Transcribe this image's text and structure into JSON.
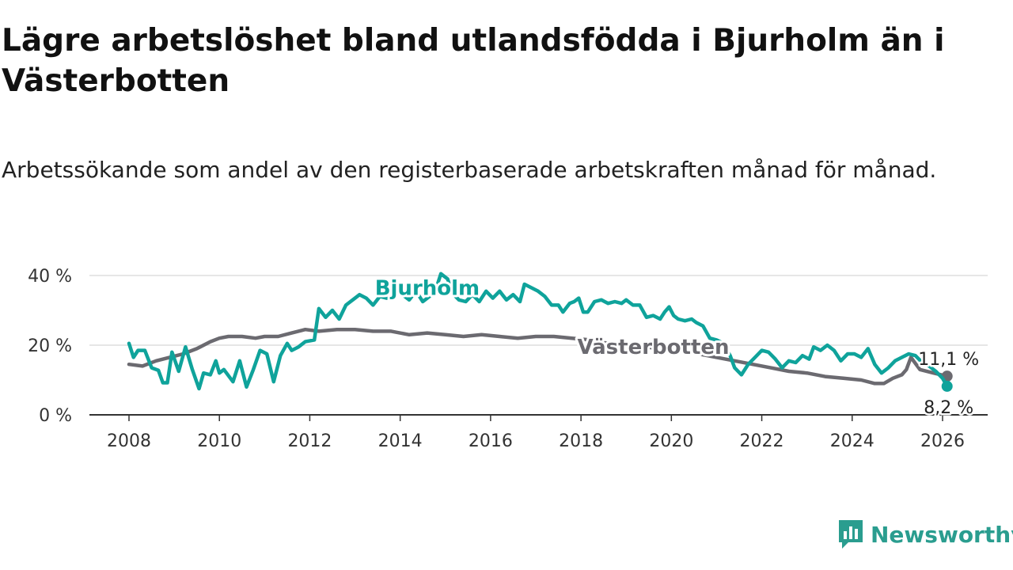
{
  "title": "Lägre arbetslöshet bland utlandsfödda i Bjurholm än i Västerbotten",
  "subtitle": "Arbetssökande som andel av den registerbaserade arbetskraften månad för månad.",
  "logo_text": "Newsworthy",
  "colors": {
    "bjurholm": "#0fa39b",
    "vasterbotten": "#6b6a70",
    "grid": "#dddddd",
    "axis": "#333333",
    "text": "#333333",
    "brand": "#2a9d8f"
  },
  "chart_data": {
    "type": "line",
    "title": "Lägre arbetslöshet bland utlandsfödda i Bjurholm än i Västerbotten",
    "xlabel": "",
    "ylabel": "",
    "xlim": [
      2008,
      2026.1
    ],
    "ylim": [
      0,
      40
    ],
    "x_ticks": [
      {
        "value": 2008,
        "label": "2008"
      },
      {
        "value": 2010,
        "label": "2010"
      },
      {
        "value": 2012,
        "label": "2012"
      },
      {
        "value": 2014,
        "label": "2014"
      },
      {
        "value": 2016,
        "label": "2016"
      },
      {
        "value": 2018,
        "label": "2018"
      },
      {
        "value": 2020,
        "label": "2020"
      },
      {
        "value": 2022,
        "label": "2022"
      },
      {
        "value": 2024,
        "label": "2024"
      },
      {
        "value": 2026,
        "label": "2026"
      }
    ],
    "y_ticks": [
      {
        "value": 0,
        "label": "0 %"
      },
      {
        "value": 20,
        "label": "20 %"
      },
      {
        "value": 40,
        "label": "40 %"
      }
    ],
    "series": [
      {
        "name": "Bjurholm",
        "color_key": "bjurholm",
        "label_at": [
          2014.6,
          36.5
        ],
        "points": [
          [
            2008.0,
            20.5
          ],
          [
            2008.1,
            16.5
          ],
          [
            2008.2,
            18.5
          ],
          [
            2008.35,
            18.5
          ],
          [
            2008.5,
            13.5
          ],
          [
            2008.65,
            12.8
          ],
          [
            2008.75,
            9.2
          ],
          [
            2008.85,
            9.2
          ],
          [
            2008.95,
            18.0
          ],
          [
            2009.1,
            12.5
          ],
          [
            2009.25,
            19.5
          ],
          [
            2009.4,
            13.0
          ],
          [
            2009.55,
            7.5
          ],
          [
            2009.65,
            12.0
          ],
          [
            2009.8,
            11.5
          ],
          [
            2009.92,
            15.5
          ],
          [
            2010.0,
            12.0
          ],
          [
            2010.1,
            13.0
          ],
          [
            2010.3,
            9.5
          ],
          [
            2010.45,
            15.5
          ],
          [
            2010.6,
            8.0
          ],
          [
            2010.75,
            13.0
          ],
          [
            2010.9,
            18.5
          ],
          [
            2011.05,
            17.5
          ],
          [
            2011.2,
            9.5
          ],
          [
            2011.35,
            17.0
          ],
          [
            2011.5,
            20.5
          ],
          [
            2011.6,
            18.5
          ],
          [
            2011.75,
            19.5
          ],
          [
            2011.9,
            21.0
          ],
          [
            2012.1,
            21.5
          ],
          [
            2012.2,
            30.5
          ],
          [
            2012.35,
            28.0
          ],
          [
            2012.5,
            30.0
          ],
          [
            2012.65,
            27.5
          ],
          [
            2012.8,
            31.5
          ],
          [
            2012.95,
            33.0
          ],
          [
            2013.1,
            34.5
          ],
          [
            2013.25,
            33.5
          ],
          [
            2013.4,
            31.5
          ],
          [
            2013.55,
            34.0
          ],
          [
            2013.7,
            33.5
          ],
          [
            2013.85,
            34.5
          ],
          [
            2014.0,
            35.0
          ],
          [
            2014.2,
            33.0
          ],
          [
            2014.35,
            35.5
          ],
          [
            2014.5,
            32.5
          ],
          [
            2014.65,
            34.0
          ],
          [
            2014.8,
            36.5
          ],
          [
            2014.9,
            40.5
          ],
          [
            2015.05,
            39.0
          ],
          [
            2015.15,
            35.0
          ],
          [
            2015.3,
            33.0
          ],
          [
            2015.45,
            32.5
          ],
          [
            2015.6,
            34.5
          ],
          [
            2015.75,
            32.5
          ],
          [
            2015.9,
            35.5
          ],
          [
            2016.05,
            33.5
          ],
          [
            2016.2,
            35.5
          ],
          [
            2016.35,
            33.0
          ],
          [
            2016.5,
            34.5
          ],
          [
            2016.65,
            32.5
          ],
          [
            2016.75,
            37.5
          ],
          [
            2016.9,
            36.5
          ],
          [
            2017.05,
            35.5
          ],
          [
            2017.2,
            34.0
          ],
          [
            2017.35,
            31.5
          ],
          [
            2017.5,
            31.5
          ],
          [
            2017.6,
            29.5
          ],
          [
            2017.75,
            32.0
          ],
          [
            2017.85,
            32.5
          ],
          [
            2017.95,
            33.5
          ],
          [
            2018.05,
            29.5
          ],
          [
            2018.15,
            29.5
          ],
          [
            2018.3,
            32.5
          ],
          [
            2018.45,
            33.0
          ],
          [
            2018.6,
            32.0
          ],
          [
            2018.75,
            32.5
          ],
          [
            2018.9,
            32.0
          ],
          [
            2019.0,
            33.0
          ],
          [
            2019.15,
            31.5
          ],
          [
            2019.3,
            31.5
          ],
          [
            2019.45,
            28.0
          ],
          [
            2019.6,
            28.5
          ],
          [
            2019.75,
            27.5
          ],
          [
            2019.85,
            29.5
          ],
          [
            2019.95,
            31.0
          ],
          [
            2020.05,
            28.5
          ],
          [
            2020.15,
            27.5
          ],
          [
            2020.3,
            27.0
          ],
          [
            2020.45,
            27.5
          ],
          [
            2020.55,
            26.5
          ],
          [
            2020.7,
            25.5
          ],
          [
            2020.85,
            22.0
          ],
          [
            2021.0,
            21.5
          ],
          [
            2021.15,
            20.5
          ],
          [
            2021.3,
            17.0
          ],
          [
            2021.4,
            13.5
          ],
          [
            2021.55,
            11.5
          ],
          [
            2021.7,
            14.5
          ],
          [
            2021.85,
            16.5
          ],
          [
            2022.0,
            18.5
          ],
          [
            2022.15,
            18.0
          ],
          [
            2022.3,
            16.0
          ],
          [
            2022.45,
            13.5
          ],
          [
            2022.6,
            15.5
          ],
          [
            2022.75,
            15.0
          ],
          [
            2022.9,
            17.0
          ],
          [
            2023.05,
            16.0
          ],
          [
            2023.15,
            19.5
          ],
          [
            2023.3,
            18.5
          ],
          [
            2023.45,
            20.0
          ],
          [
            2023.6,
            18.5
          ],
          [
            2023.75,
            15.5
          ],
          [
            2023.9,
            17.5
          ],
          [
            2024.05,
            17.5
          ],
          [
            2024.2,
            16.5
          ],
          [
            2024.35,
            19.0
          ],
          [
            2024.5,
            14.5
          ],
          [
            2024.65,
            12.0
          ],
          [
            2024.8,
            13.5
          ],
          [
            2024.95,
            15.5
          ],
          [
            2025.1,
            16.5
          ],
          [
            2025.25,
            17.5
          ],
          [
            2025.4,
            17.0
          ],
          [
            2025.55,
            15.0
          ],
          [
            2025.7,
            14.0
          ],
          [
            2025.85,
            12.5
          ],
          [
            2026.0,
            10.5
          ],
          [
            2026.1,
            8.2
          ]
        ],
        "end_label": "8,2 %",
        "end_value": 8.2
      },
      {
        "name": "Västerbotten",
        "color_key": "vasterbotten",
        "label_at": [
          2019.6,
          19.5
        ],
        "points": [
          [
            2008.0,
            14.5
          ],
          [
            2008.3,
            14.0
          ],
          [
            2008.6,
            15.5
          ],
          [
            2008.9,
            16.5
          ],
          [
            2009.2,
            17.5
          ],
          [
            2009.5,
            19.0
          ],
          [
            2009.8,
            21.0
          ],
          [
            2010.0,
            22.0
          ],
          [
            2010.2,
            22.5
          ],
          [
            2010.5,
            22.5
          ],
          [
            2010.8,
            22.0
          ],
          [
            2011.0,
            22.5
          ],
          [
            2011.3,
            22.5
          ],
          [
            2011.6,
            23.5
          ],
          [
            2011.9,
            24.5
          ],
          [
            2012.2,
            24.0
          ],
          [
            2012.6,
            24.5
          ],
          [
            2013.0,
            24.5
          ],
          [
            2013.4,
            24.0
          ],
          [
            2013.8,
            24.0
          ],
          [
            2014.2,
            23.0
          ],
          [
            2014.6,
            23.5
          ],
          [
            2015.0,
            23.0
          ],
          [
            2015.4,
            22.5
          ],
          [
            2015.8,
            23.0
          ],
          [
            2016.2,
            22.5
          ],
          [
            2016.6,
            22.0
          ],
          [
            2017.0,
            22.5
          ],
          [
            2017.4,
            22.5
          ],
          [
            2017.8,
            22.0
          ],
          [
            2018.2,
            21.5
          ],
          [
            2018.6,
            20.5
          ],
          [
            2019.0,
            20.0
          ],
          [
            2019.4,
            19.5
          ],
          [
            2019.8,
            19.0
          ],
          [
            2020.2,
            18.5
          ],
          [
            2020.6,
            17.5
          ],
          [
            2021.0,
            16.5
          ],
          [
            2021.4,
            15.5
          ],
          [
            2021.8,
            14.5
          ],
          [
            2022.2,
            13.5
          ],
          [
            2022.6,
            12.5
          ],
          [
            2023.0,
            12.0
          ],
          [
            2023.4,
            11.0
          ],
          [
            2023.8,
            10.5
          ],
          [
            2024.2,
            10.0
          ],
          [
            2024.5,
            9.0
          ],
          [
            2024.7,
            9.0
          ],
          [
            2024.9,
            10.5
          ],
          [
            2025.1,
            11.5
          ],
          [
            2025.2,
            13.0
          ],
          [
            2025.3,
            16.5
          ],
          [
            2025.5,
            13.0
          ],
          [
            2025.8,
            12.0
          ],
          [
            2026.1,
            11.1
          ]
        ],
        "end_label": "11,1 %",
        "end_value": 11.1
      }
    ]
  }
}
